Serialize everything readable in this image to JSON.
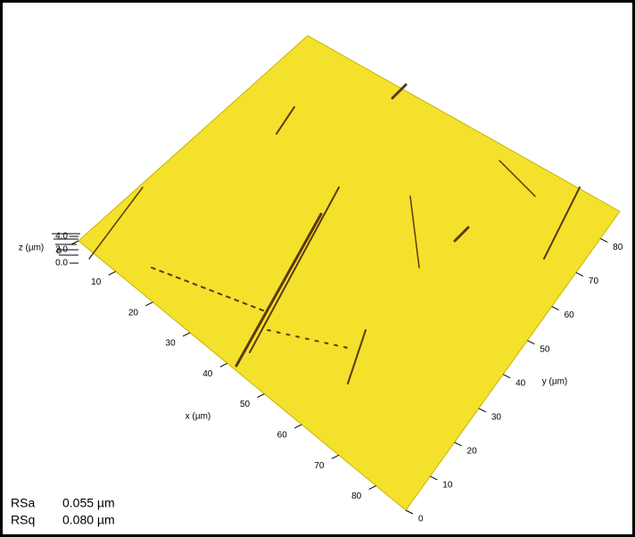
{
  "chart_data": {
    "type": "surface",
    "xlabel": "x (µm)",
    "ylabel": "y (µm)",
    "zlabel": "z (µm)",
    "xlim": [
      0,
      88
    ],
    "xticks": [
      0,
      10,
      20,
      30,
      40,
      50,
      60,
      70,
      80
    ],
    "ylim": [
      0,
      88
    ],
    "yticks": [
      0,
      10,
      20,
      30,
      40,
      50,
      60,
      70,
      80
    ],
    "zlim": [
      0,
      4
    ],
    "zticks": [
      {
        "value": 0,
        "label": "0.0"
      },
      {
        "value": 2,
        "label": "2.0"
      },
      {
        "value": 4,
        "label": "4.0"
      }
    ],
    "color": "#f4e12c",
    "annotations": [
      {
        "name": "RSa",
        "text": "0.055 µm"
      },
      {
        "name": "RSq",
        "text": "0.080 µm"
      }
    ]
  }
}
